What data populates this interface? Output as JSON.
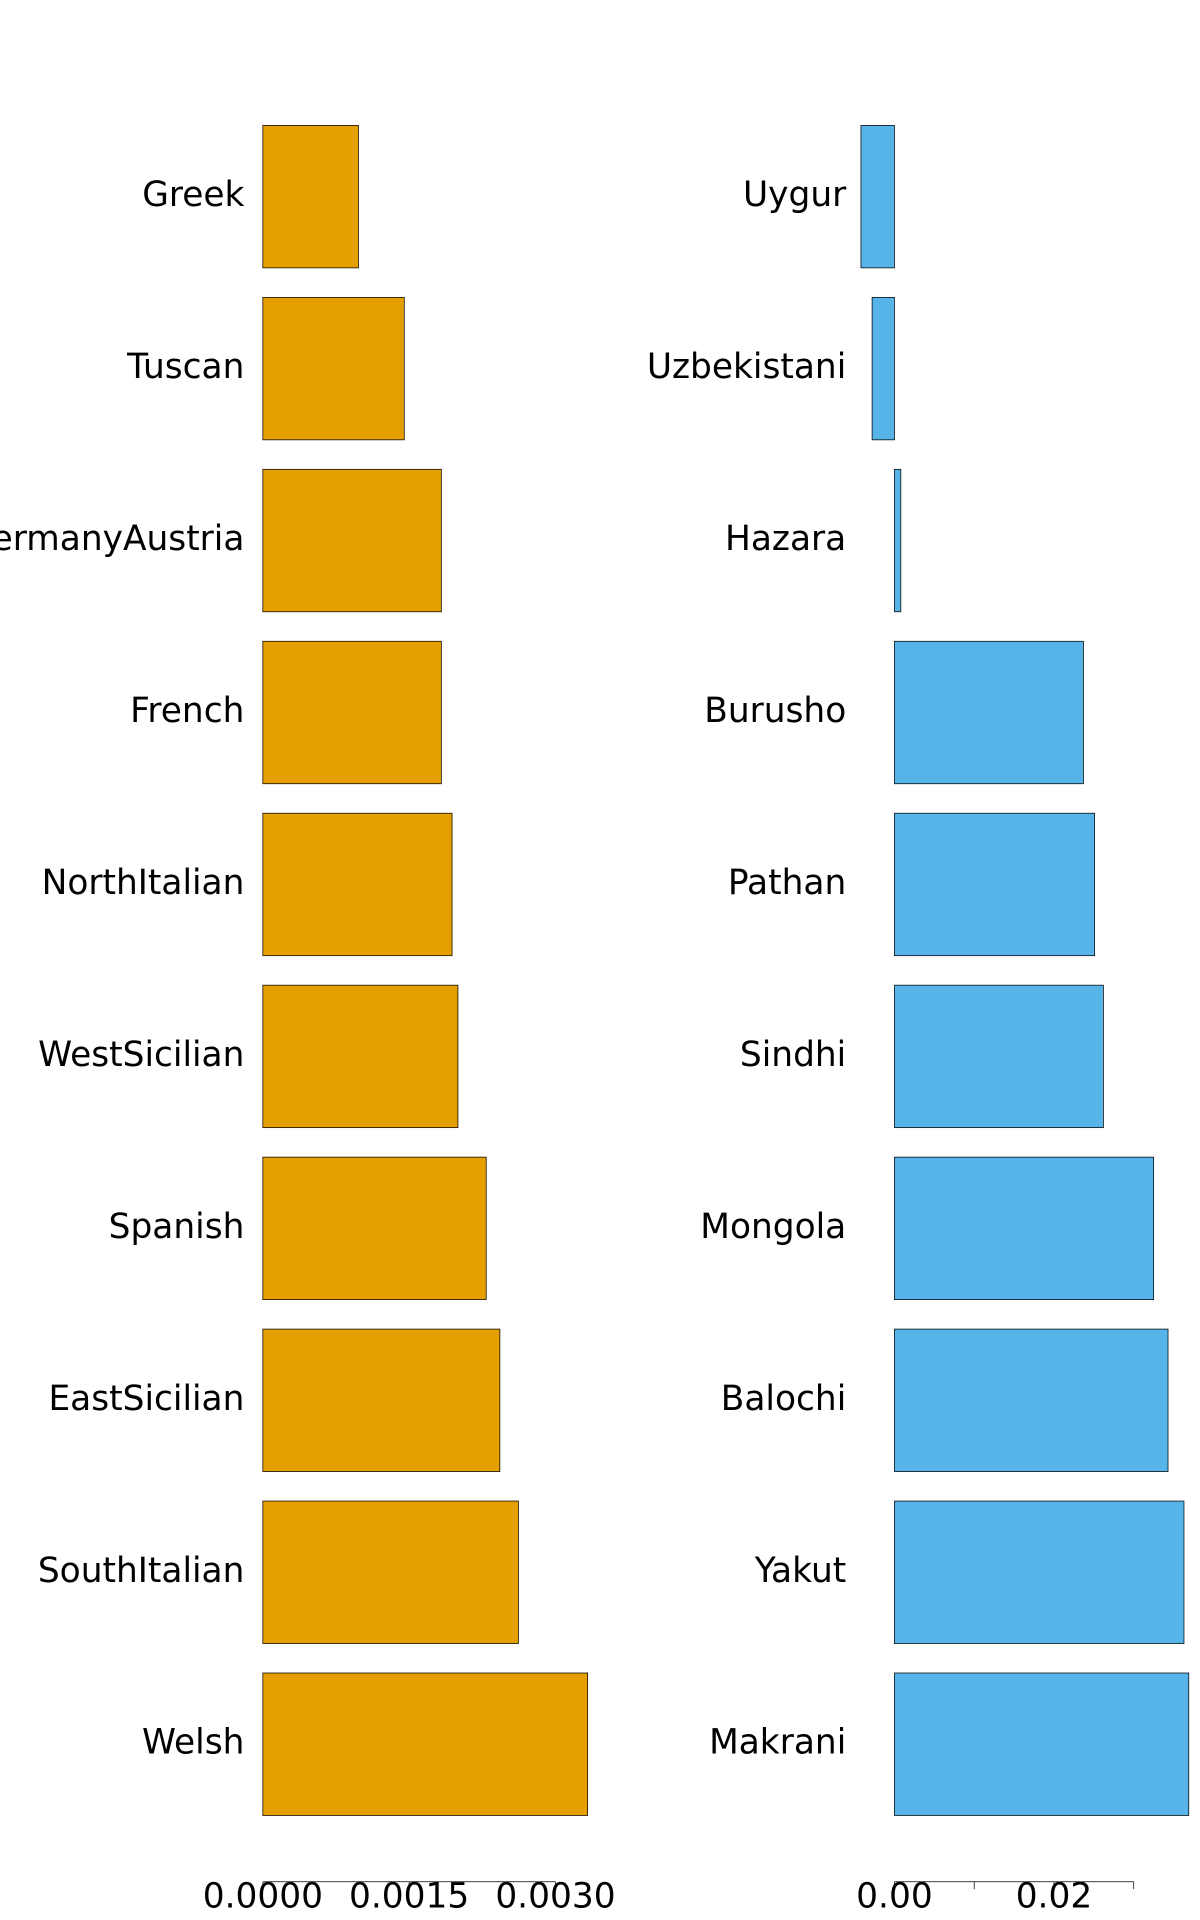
{
  "chart_data": [
    {
      "type": "bar",
      "orientation": "horizontal",
      "color": "#E69F00",
      "categories": [
        "Greek",
        "Tuscan",
        "GermanyAustria",
        "French",
        "NorthItalian",
        "WestSicilian",
        "Spanish",
        "EastSicilian",
        "SouthItalian",
        "Welsh"
      ],
      "values": [
        0.00098,
        0.00145,
        0.00183,
        0.00183,
        0.00194,
        0.002,
        0.00229,
        0.00243,
        0.00262,
        0.00333
      ],
      "xlim": [
        0,
        0.0034
      ],
      "xticks": [
        {
          "value": 0,
          "label": "0.0000"
        },
        {
          "value": 0.0015,
          "label": "0.0015"
        },
        {
          "value": 0.003,
          "label": "0.0030"
        }
      ]
    },
    {
      "type": "bar",
      "orientation": "horizontal",
      "color": "#56B4E9",
      "categories": [
        "Uygur",
        "Uzbekistani",
        "Hazara",
        "Burusho",
        "Pathan",
        "Sindhi",
        "Mongola",
        "Balochi",
        "Yakut",
        "Makrani"
      ],
      "values": [
        -0.0042,
        -0.0028,
        0.0008,
        0.0237,
        0.0251,
        0.0262,
        0.0325,
        0.0343,
        0.0363,
        0.0369
      ],
      "xlim": [
        -0.0045,
        0.037
      ],
      "xticks": [
        {
          "value": 0,
          "label": "0.00"
        },
        {
          "value": 0.01,
          "label": null
        },
        {
          "value": 0.02,
          "label": "0.02"
        },
        {
          "value": 0.03,
          "label": null
        }
      ]
    }
  ]
}
